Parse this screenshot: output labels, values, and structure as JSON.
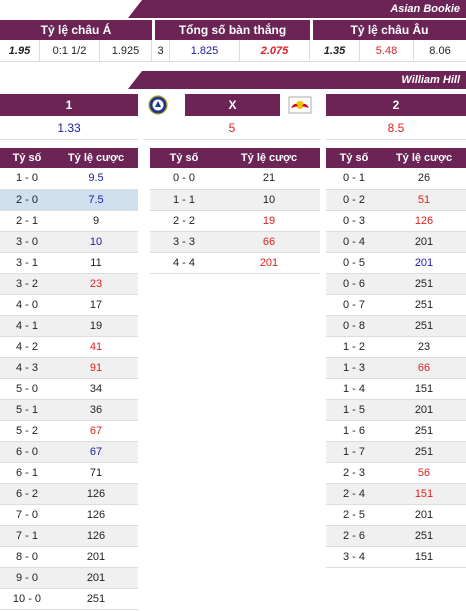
{
  "asian_bookie": {
    "banner": "Asian Bookie",
    "headers": [
      "Tỷ lệ châu Á",
      "Tổng số bàn thắng",
      "Tỷ lệ châu Âu"
    ],
    "values": [
      {
        "text": "1.95",
        "style": "bi"
      },
      {
        "text": "0:1 1/2",
        "style": ""
      },
      {
        "text": "1.925",
        "style": ""
      },
      {
        "text": "3",
        "style": ""
      },
      {
        "text": "1.825",
        "style": "blue"
      },
      {
        "text": "2.075",
        "style": "bi red"
      },
      {
        "text": "1.35",
        "style": "bi"
      },
      {
        "text": "5.48",
        "style": "red"
      },
      {
        "text": "8.06",
        "style": ""
      }
    ]
  },
  "william_hill": {
    "banner": "William Hill",
    "home_label": "1",
    "draw_label": "X",
    "away_label": "2",
    "home_odds": "1.33",
    "draw_odds": "5",
    "away_odds": "8.5",
    "home_logo": "chelsea-crest-icon",
    "away_logo": "red-bull-crest-icon"
  },
  "score_tables": {
    "col_score": "Tỷ số",
    "col_odds": "Tỷ lệ cược",
    "home_wins": [
      {
        "score": "1 - 0",
        "odds": "9.5",
        "color": "blue"
      },
      {
        "score": "2 - 0",
        "odds": "7.5",
        "color": "blue",
        "highlight": true
      },
      {
        "score": "2 - 1",
        "odds": "9",
        "color": ""
      },
      {
        "score": "3 - 0",
        "odds": "10",
        "color": "blue"
      },
      {
        "score": "3 - 1",
        "odds": "11",
        "color": ""
      },
      {
        "score": "3 - 2",
        "odds": "23",
        "color": "red"
      },
      {
        "score": "4 - 0",
        "odds": "17",
        "color": ""
      },
      {
        "score": "4 - 1",
        "odds": "19",
        "color": ""
      },
      {
        "score": "4 - 2",
        "odds": "41",
        "color": "red"
      },
      {
        "score": "4 - 3",
        "odds": "91",
        "color": "red"
      },
      {
        "score": "5 - 0",
        "odds": "34",
        "color": ""
      },
      {
        "score": "5 - 1",
        "odds": "36",
        "color": ""
      },
      {
        "score": "5 - 2",
        "odds": "67",
        "color": "red"
      },
      {
        "score": "6 - 0",
        "odds": "67",
        "color": "blue"
      },
      {
        "score": "6 - 1",
        "odds": "71",
        "color": ""
      },
      {
        "score": "6 - 2",
        "odds": "126",
        "color": ""
      },
      {
        "score": "7 - 0",
        "odds": "126",
        "color": ""
      },
      {
        "score": "7 - 1",
        "odds": "126",
        "color": ""
      },
      {
        "score": "8 - 0",
        "odds": "201",
        "color": ""
      },
      {
        "score": "9 - 0",
        "odds": "201",
        "color": ""
      },
      {
        "score": "10 - 0",
        "odds": "251",
        "color": ""
      }
    ],
    "draws": [
      {
        "score": "0 - 0",
        "odds": "21",
        "color": ""
      },
      {
        "score": "1 - 1",
        "odds": "10",
        "color": ""
      },
      {
        "score": "2 - 2",
        "odds": "19",
        "color": "red"
      },
      {
        "score": "3 - 3",
        "odds": "66",
        "color": "red"
      },
      {
        "score": "4 - 4",
        "odds": "201",
        "color": "red"
      }
    ],
    "away_wins": [
      {
        "score": "0 - 1",
        "odds": "26",
        "color": ""
      },
      {
        "score": "0 - 2",
        "odds": "51",
        "color": "red"
      },
      {
        "score": "0 - 3",
        "odds": "126",
        "color": "red"
      },
      {
        "score": "0 - 4",
        "odds": "201",
        "color": ""
      },
      {
        "score": "0 - 5",
        "odds": "201",
        "color": "blue"
      },
      {
        "score": "0 - 6",
        "odds": "251",
        "color": ""
      },
      {
        "score": "0 - 7",
        "odds": "251",
        "color": ""
      },
      {
        "score": "0 - 8",
        "odds": "251",
        "color": ""
      },
      {
        "score": "1 - 2",
        "odds": "23",
        "color": ""
      },
      {
        "score": "1 - 3",
        "odds": "66",
        "color": "red"
      },
      {
        "score": "1 - 4",
        "odds": "151",
        "color": ""
      },
      {
        "score": "1 - 5",
        "odds": "201",
        "color": ""
      },
      {
        "score": "1 - 6",
        "odds": "251",
        "color": ""
      },
      {
        "score": "1 - 7",
        "odds": "251",
        "color": ""
      },
      {
        "score": "2 - 3",
        "odds": "56",
        "color": "red"
      },
      {
        "score": "2 - 4",
        "odds": "151",
        "color": "red"
      },
      {
        "score": "2 - 5",
        "odds": "201",
        "color": ""
      },
      {
        "score": "2 - 6",
        "odds": "251",
        "color": ""
      },
      {
        "score": "3 - 4",
        "odds": "151",
        "color": ""
      }
    ]
  },
  "colors": {
    "header_bg": "#6b2455",
    "red": "#e02020",
    "blue": "#1a1aa8",
    "highlight": "#cfe0ee"
  }
}
